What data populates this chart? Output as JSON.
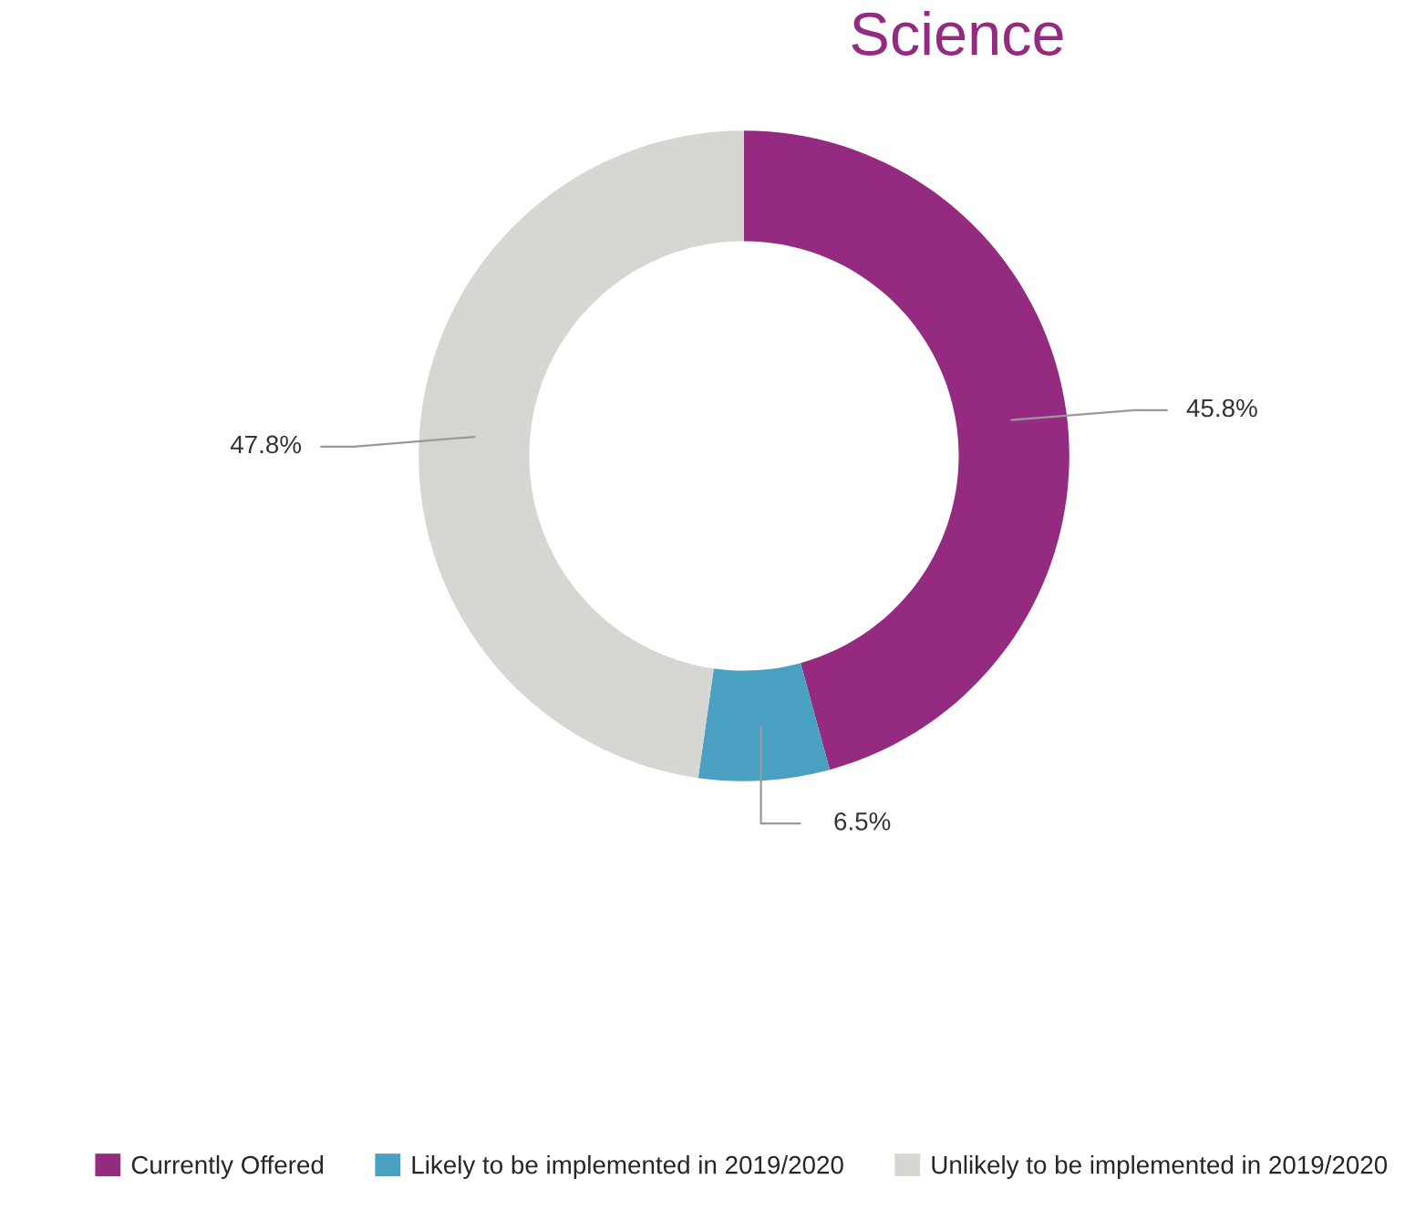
{
  "chart_data": {
    "type": "donut",
    "categories": [
      "Currently Offered",
      "Likely to be implemented in 2019/2020",
      "Unlikely to be implemented in 2019/2020"
    ],
    "values": [
      45.8,
      6.5,
      47.8
    ],
    "colors": [
      "#952b80",
      "#4aa0c0",
      "#d6d6d2"
    ],
    "value_labels": [
      "45.8%",
      "6.5%",
      "47.8%"
    ],
    "annotations": [
      "Science"
    ],
    "legend": "bottom"
  }
}
